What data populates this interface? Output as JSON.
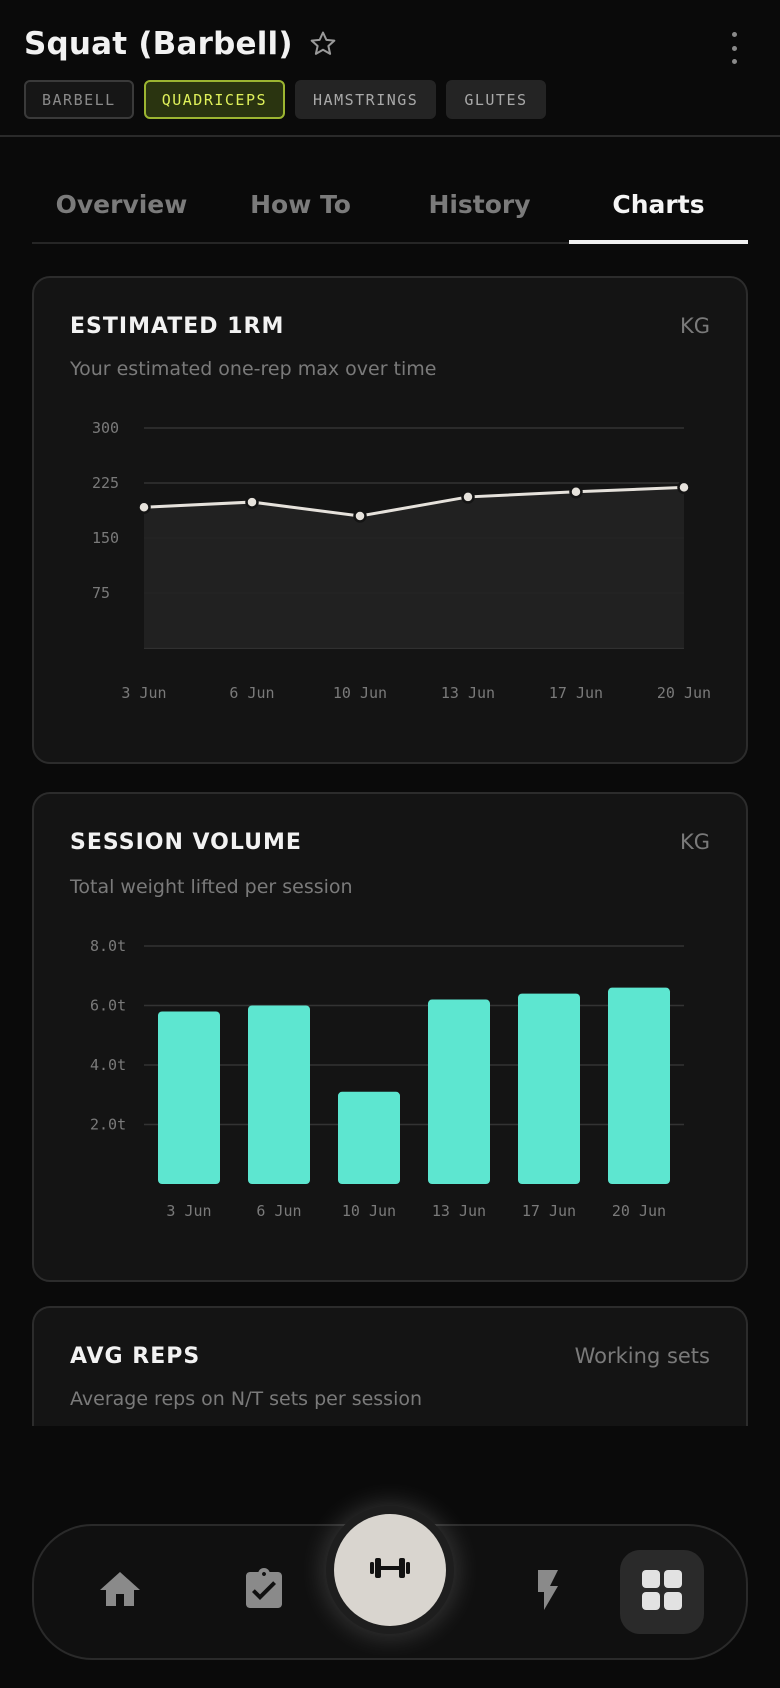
{
  "header": {
    "title": "Squat (Barbell)",
    "chips": [
      {
        "label": "BARBELL",
        "style": "dim"
      },
      {
        "label": "QUADRICEPS",
        "style": "active"
      },
      {
        "label": "HAMSTRINGS",
        "style": "plain"
      },
      {
        "label": "GLUTES",
        "style": "plain"
      }
    ]
  },
  "tabs": [
    {
      "label": "Overview",
      "active": false
    },
    {
      "label": "How To",
      "active": false
    },
    {
      "label": "History",
      "active": false
    },
    {
      "label": "Charts",
      "active": true
    }
  ],
  "cards": {
    "estimated_1rm": {
      "title": "ESTIMATED 1RM",
      "unit": "KG",
      "subtitle": "Your estimated one-rep max over time"
    },
    "session_volume": {
      "title": "SESSION VOLUME",
      "unit": "KG",
      "subtitle": "Total weight lifted per session"
    },
    "avg_reps": {
      "title": "AVG REPS",
      "unit": "Working sets",
      "subtitle": "Average reps on N/T sets per session"
    }
  },
  "chart_data": [
    {
      "type": "area",
      "title": "ESTIMATED 1RM",
      "subtitle": "Your estimated one-rep max over time",
      "unit": "KG",
      "categories": [
        "3 Jun",
        "6 Jun",
        "10 Jun",
        "13 Jun",
        "17 Jun",
        "20 Jun"
      ],
      "values": [
        192,
        199,
        180,
        206,
        213,
        219
      ],
      "yticks": [
        "300",
        "225",
        "150",
        "75"
      ],
      "ylim": [
        0,
        300
      ],
      "grid": true,
      "colors": {
        "line": "#e6e2dc",
        "fill": "#222222"
      }
    },
    {
      "type": "bar",
      "title": "SESSION VOLUME",
      "subtitle": "Total weight lifted per session",
      "unit": "KG",
      "categories": [
        "3 Jun",
        "6 Jun",
        "10 Jun",
        "13 Jun",
        "17 Jun",
        "20 Jun"
      ],
      "values": [
        5.8,
        6.0,
        3.1,
        6.2,
        6.4,
        6.6
      ],
      "yticks": [
        "8.0t",
        "6.0t",
        "4.0t",
        "2.0t"
      ],
      "ylim": [
        0,
        8
      ],
      "grid": true,
      "colors": {
        "bar": "#5de6d0"
      }
    }
  ],
  "nav": {
    "items": [
      {
        "icon": "home-icon"
      },
      {
        "icon": "clipboard-check-icon"
      },
      {
        "icon": "dumbbell-icon"
      },
      {
        "icon": "bolt-icon"
      },
      {
        "icon": "grid-icon"
      }
    ]
  }
}
